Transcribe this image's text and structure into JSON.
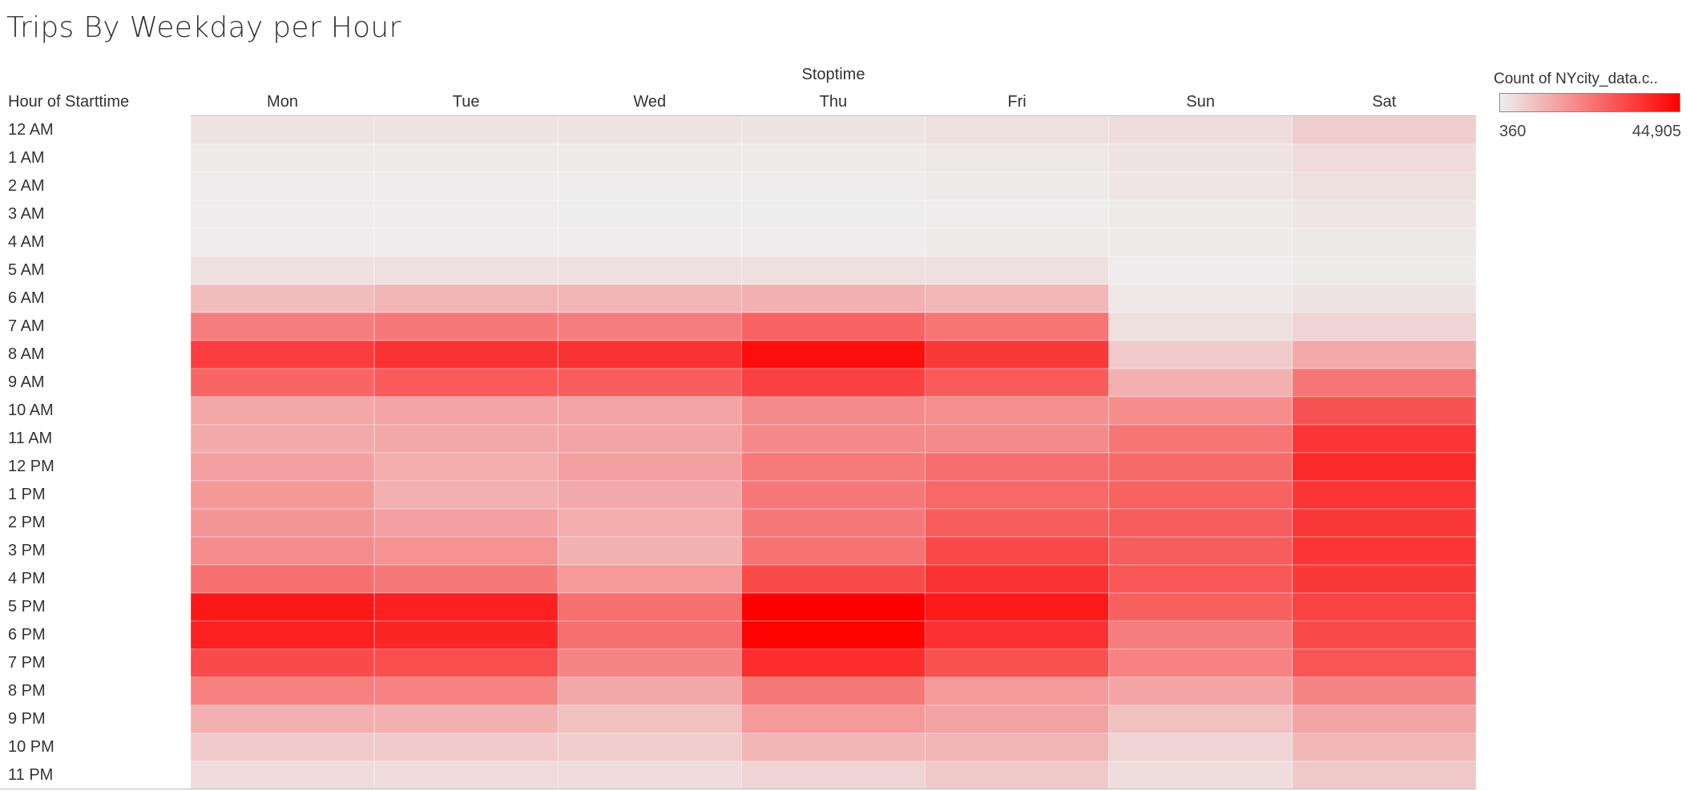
{
  "title": "Trips By Weekday per Hour",
  "chart_data": {
    "type": "heatmap",
    "title": "Trips By Weekday per Hour",
    "column_group_label": "Stoptime",
    "row_header": "Hour of Starttime",
    "columns": [
      "Mon",
      "Tue",
      "Wed",
      "Thu",
      "Fri",
      "Sun",
      "Sat"
    ],
    "rows": [
      "12 AM",
      "1 AM",
      "2 AM",
      "3 AM",
      "4 AM",
      "5 AM",
      "6 AM",
      "7 AM",
      "8 AM",
      "9 AM",
      "10 AM",
      "11 AM",
      "12 PM",
      "1 PM",
      "2 PM",
      "3 PM",
      "4 PM",
      "5 PM",
      "6 PM",
      "7 PM",
      "8 PM",
      "9 PM",
      "10 PM",
      "11 PM"
    ],
    "values": [
      [
        2500,
        2500,
        2500,
        2200,
        3000,
        3500,
        6500
      ],
      [
        1200,
        1200,
        1100,
        1000,
        1600,
        2500,
        4000
      ],
      [
        700,
        700,
        700,
        700,
        1100,
        2000,
        3000
      ],
      [
        700,
        700,
        600,
        600,
        800,
        1200,
        2000
      ],
      [
        800,
        800,
        800,
        800,
        1000,
        1000,
        1300
      ],
      [
        3000,
        3000,
        3000,
        3000,
        3000,
        800,
        1200
      ],
      [
        9500,
        11000,
        11000,
        12000,
        10500,
        1500,
        2500
      ],
      [
        21500,
        22500,
        21500,
        26500,
        23000,
        3000,
        5500
      ],
      [
        33500,
        35500,
        35500,
        42500,
        34500,
        7000,
        13000
      ],
      [
        26000,
        28000,
        27500,
        33000,
        28000,
        12000,
        23000
      ],
      [
        13500,
        14000,
        14000,
        19000,
        18000,
        18500,
        29500
      ],
      [
        13000,
        13500,
        14000,
        19500,
        19000,
        23000,
        35000
      ],
      [
        15000,
        12500,
        15000,
        22000,
        24500,
        25000,
        37000
      ],
      [
        16500,
        12000,
        13000,
        22500,
        25500,
        26500,
        35000
      ],
      [
        17000,
        15000,
        12500,
        22500,
        27500,
        27500,
        34500
      ],
      [
        18500,
        17500,
        11500,
        23500,
        31500,
        27500,
        35000
      ],
      [
        24000,
        22500,
        16000,
        31000,
        35500,
        28500,
        34500
      ],
      [
        40500,
        39000,
        24000,
        44905,
        40000,
        27000,
        32500
      ],
      [
        39000,
        38000,
        24000,
        44500,
        36000,
        21500,
        31000
      ],
      [
        31000,
        30500,
        20000,
        36500,
        30000,
        20500,
        29000
      ],
      [
        21000,
        20500,
        13500,
        22500,
        16000,
        14000,
        20000
      ],
      [
        12000,
        12000,
        9000,
        16000,
        14500,
        9000,
        14000
      ],
      [
        7000,
        7000,
        6500,
        11000,
        11000,
        5500,
        10500
      ],
      [
        4000,
        4000,
        4000,
        5500,
        7500,
        3500,
        7500
      ]
    ],
    "color_min": "#eeeeee",
    "color_max": "#ff0000",
    "legend": {
      "title": "Count of NYcity_data.c..",
      "min_label": "360",
      "max_label": "44,905",
      "min": 360,
      "max": 44905,
      "position": "top-right"
    }
  }
}
